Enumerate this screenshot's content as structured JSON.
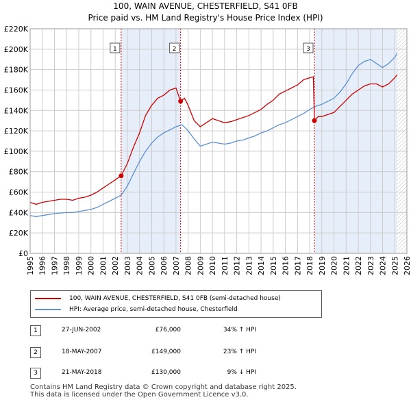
{
  "title": "100, WAIN AVENUE, CHESTERFIELD, S41 0FB",
  "subtitle": "Price paid vs. HM Land Registry's House Price Index (HPI)",
  "colors": {
    "red": "#cc0000",
    "blue": "#5b8fd0",
    "shade": "#e6eef9",
    "grid": "#cccccc"
  },
  "chart_data": {
    "type": "line",
    "xlim": [
      1995,
      2026
    ],
    "ylim": [
      0,
      220000
    ],
    "y_ticks": [
      0,
      20000,
      40000,
      60000,
      80000,
      100000,
      120000,
      140000,
      160000,
      180000,
      200000,
      220000
    ],
    "y_tick_labels": [
      "£0",
      "£20K",
      "£40K",
      "£60K",
      "£80K",
      "£100K",
      "£120K",
      "£140K",
      "£160K",
      "£180K",
      "£200K",
      "£220K"
    ],
    "x_ticks": [
      "1995",
      "1996",
      "1997",
      "1998",
      "1999",
      "2000",
      "2001",
      "2002",
      "2003",
      "2004",
      "2005",
      "2006",
      "2007",
      "2008",
      "2009",
      "2010",
      "2011",
      "2012",
      "2013",
      "2014",
      "2015",
      "2016",
      "2017",
      "2018",
      "2019",
      "2020",
      "2021",
      "2022",
      "2023",
      "2024",
      "2025",
      "2026"
    ],
    "grid": true,
    "shaded_ranges": [
      [
        2002.49,
        2007.38
      ],
      [
        2018.39,
        2025.2
      ]
    ],
    "hatched_after": 2025.2,
    "series": [
      {
        "name": "100, WAIN AVENUE, CHESTERFIELD, S41 0FB (semi-detached house)",
        "x": [
          1995,
          1995.5,
          1996,
          1996.5,
          1997,
          1997.5,
          1998,
          1998.5,
          1999,
          1999.5,
          2000,
          2000.5,
          2001,
          2001.5,
          2002,
          2002.49,
          2003,
          2003.5,
          2004,
          2004.5,
          2005,
          2005.5,
          2006,
          2006.5,
          2007,
          2007.38,
          2007.7,
          2008,
          2008.5,
          2009,
          2009.5,
          2010,
          2010.5,
          2011,
          2011.5,
          2012,
          2012.5,
          2013,
          2013.5,
          2014,
          2014.5,
          2015,
          2015.5,
          2016,
          2016.5,
          2017,
          2017.5,
          2018,
          2018.3,
          2018.39,
          2018.7,
          2019,
          2019.5,
          2020,
          2020.5,
          2021,
          2021.5,
          2022,
          2022.5,
          2023,
          2023.5,
          2024,
          2024.5,
          2025,
          2025.2
        ],
        "y": [
          50000,
          48000,
          50000,
          51000,
          52000,
          53000,
          53000,
          52000,
          54000,
          55000,
          57000,
          60000,
          64000,
          68000,
          72000,
          76000,
          88000,
          104000,
          118000,
          135000,
          145000,
          152000,
          155000,
          160000,
          162000,
          149000,
          152000,
          145000,
          130000,
          124000,
          128000,
          132000,
          130000,
          128000,
          129000,
          131000,
          133000,
          135000,
          138000,
          141000,
          146000,
          150000,
          156000,
          159000,
          162000,
          165000,
          170000,
          172000,
          173000,
          130000,
          134000,
          134000,
          136000,
          138000,
          144000,
          150000,
          156000,
          160000,
          164000,
          166000,
          166000,
          163000,
          166000,
          172000,
          175000
        ]
      },
      {
        "name": "HPI: Average price, semi-detached house, Chesterfield",
        "x": [
          1995,
          1995.5,
          1996,
          1996.5,
          1997,
          1997.5,
          1998,
          1998.5,
          1999,
          1999.5,
          2000,
          2000.5,
          2001,
          2001.5,
          2002,
          2002.5,
          2003,
          2003.5,
          2004,
          2004.5,
          2005,
          2005.5,
          2006,
          2006.5,
          2007,
          2007.5,
          2008,
          2008.5,
          2009,
          2009.5,
          2010,
          2010.5,
          2011,
          2011.5,
          2012,
          2012.5,
          2013,
          2013.5,
          2014,
          2014.5,
          2015,
          2015.5,
          2016,
          2016.5,
          2017,
          2017.5,
          2018,
          2018.5,
          2019,
          2019.5,
          2020,
          2020.5,
          2021,
          2021.5,
          2022,
          2022.5,
          2023,
          2023.5,
          2024,
          2024.5,
          2025,
          2025.2
        ],
        "y": [
          37000,
          36000,
          37000,
          38000,
          39000,
          39500,
          40000,
          40000,
          41000,
          42000,
          43000,
          45000,
          48000,
          51000,
          54000,
          57000,
          66000,
          78000,
          90000,
          100000,
          108000,
          114000,
          118000,
          121000,
          124000,
          126000,
          120000,
          112000,
          105000,
          107000,
          109000,
          108000,
          107000,
          108000,
          110000,
          111000,
          113000,
          115000,
          118000,
          120000,
          123000,
          126000,
          128000,
          131000,
          134000,
          137000,
          141000,
          144000,
          146000,
          149000,
          152000,
          158000,
          166000,
          176000,
          184000,
          188000,
          190000,
          186000,
          182000,
          186000,
          192000,
          196000
        ]
      }
    ],
    "sales": [
      {
        "label": "1",
        "x": 2002.49,
        "price": 76000
      },
      {
        "label": "2",
        "x": 2007.38,
        "price": 149000
      },
      {
        "label": "3",
        "x": 2018.39,
        "price": 130000
      }
    ]
  },
  "legend": {
    "red_label": "100, WAIN AVENUE, CHESTERFIELD, S41 0FB (semi-detached house)",
    "blue_label": "HPI: Average price, semi-detached house, Chesterfield"
  },
  "transactions": [
    {
      "num": "1",
      "date": "27-JUN-2002",
      "price": "£76,000",
      "hpi": "34% ↑ HPI"
    },
    {
      "num": "2",
      "date": "18-MAY-2007",
      "price": "£149,000",
      "hpi": "23% ↑ HPI"
    },
    {
      "num": "3",
      "date": "21-MAY-2018",
      "price": "£130,000",
      "hpi": "9% ↓ HPI"
    }
  ],
  "footer": {
    "line1": "Contains HM Land Registry data © Crown copyright and database right 2025.",
    "line2": "This data is licensed under the Open Government Licence v3.0."
  }
}
